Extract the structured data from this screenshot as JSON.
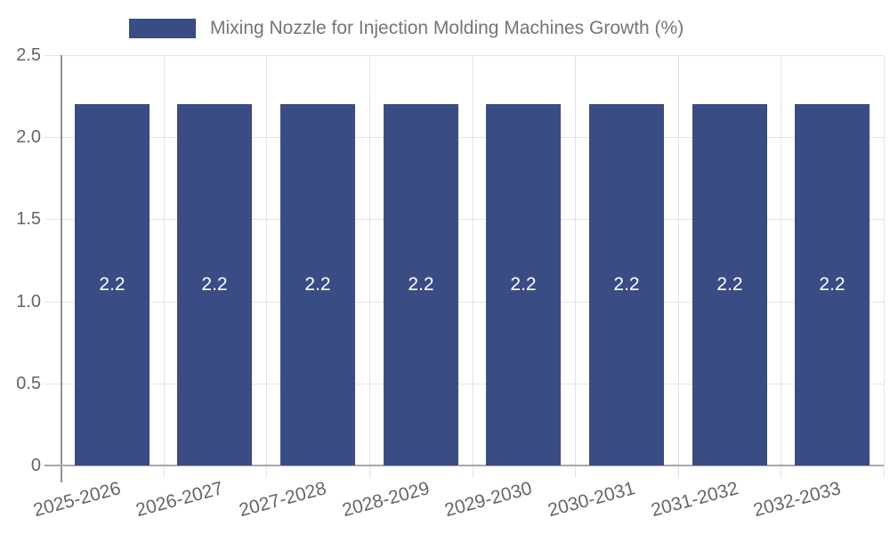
{
  "legend": {
    "series_label": "Mixing Nozzle for Injection Molding Machines Growth (%)"
  },
  "chart_data": {
    "type": "bar",
    "title": "",
    "series_name": "Mixing Nozzle for Injection Molding Machines Growth (%)",
    "categories": [
      "2025-2026",
      "2026-2027",
      "2027-2028",
      "2028-2029",
      "2029-2030",
      "2030-2031",
      "2031-2032",
      "2032-2033"
    ],
    "values": [
      2.2,
      2.2,
      2.2,
      2.2,
      2.2,
      2.2,
      2.2,
      2.2
    ],
    "value_labels": [
      "2.2",
      "2.2",
      "2.2",
      "2.2",
      "2.2",
      "2.2",
      "2.2",
      "2.2"
    ],
    "xlabel": "",
    "ylabel": "",
    "ylim": [
      0,
      2.5
    ],
    "ytick_values": [
      0,
      0.5,
      1,
      1.5,
      2,
      2.5
    ],
    "ytick_labels": [
      "0",
      "0.5",
      "1.0",
      "1.5",
      "2.0",
      "2.5"
    ],
    "grid": true,
    "legend_position": "top",
    "bar_color": "#3A4C84",
    "value_label_color": "#ffffff",
    "grid_color": "#e3e3e3",
    "axis_color": "#9a9a9a",
    "tick_label_color": "#666666",
    "legend_text_color": "#757575"
  }
}
